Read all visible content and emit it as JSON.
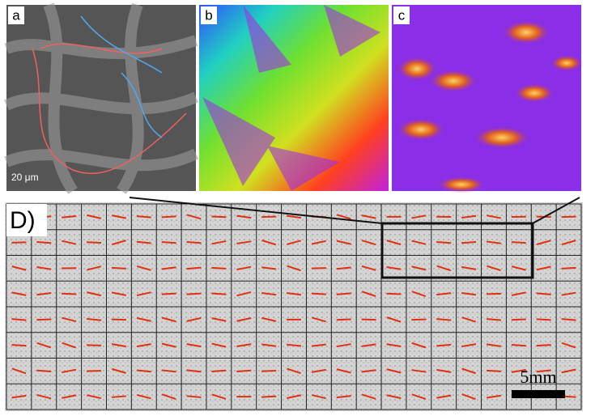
{
  "panels": {
    "a": {
      "label": "a",
      "scale_bar": "20 μm"
    },
    "b": {
      "label": "b"
    },
    "c": {
      "label": "c"
    },
    "d": {
      "label": "D)",
      "scale_bar": "5mm"
    }
  }
}
